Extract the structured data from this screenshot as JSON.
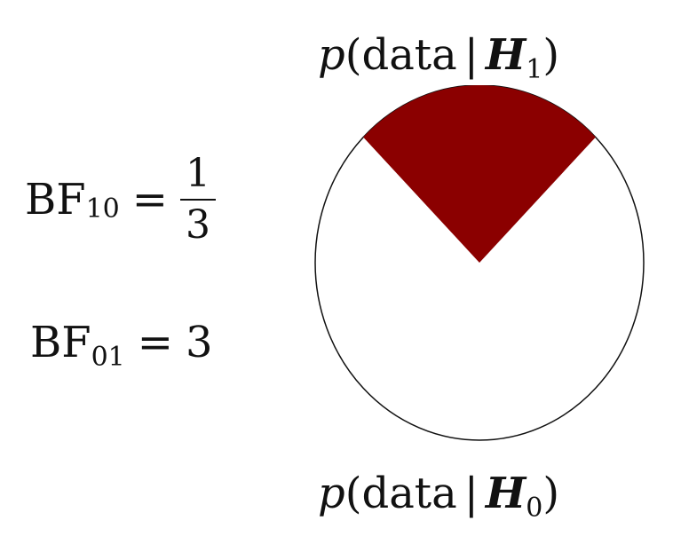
{
  "top_label": {
    "p": "p",
    "open": "(data",
    "bar": "|",
    "hyp": "H",
    "sub": "1",
    "close": ")"
  },
  "bottom_label": {
    "p": "p",
    "open": "(data",
    "bar": "|",
    "hyp": "H",
    "sub": "0",
    "close": ")"
  },
  "bf10": {
    "base": "BF",
    "sub": "10",
    "eq": "=",
    "numerator": "1",
    "denominator": "3"
  },
  "bf01": {
    "base": "BF",
    "sub": "01",
    "eq": "=",
    "value": "3"
  },
  "colors": {
    "wedge": "#8b0000",
    "outline": "#111111",
    "background": "#ffffff"
  },
  "pie": {
    "h1_fraction": 0.25,
    "h0_fraction": 0.75
  }
}
